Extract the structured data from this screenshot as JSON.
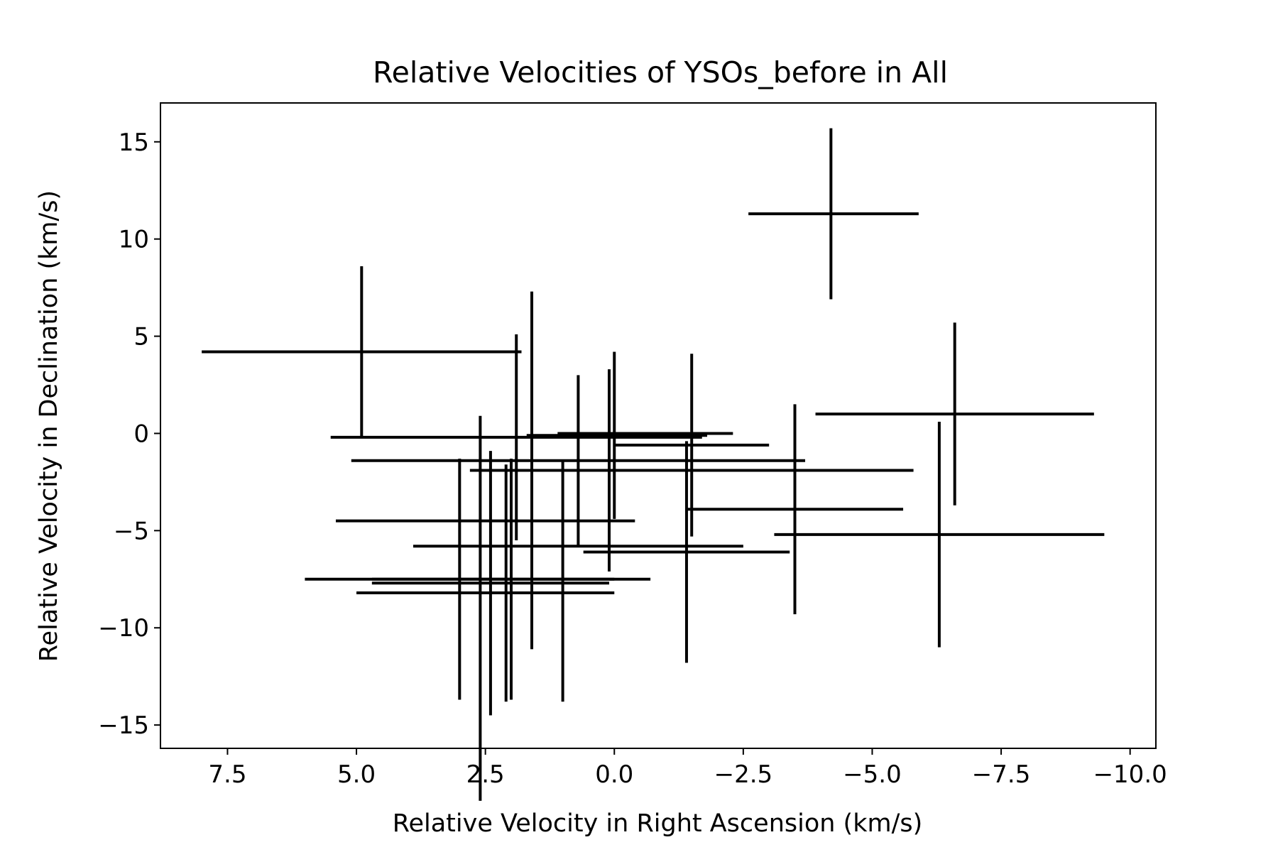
{
  "chart_data": {
    "type": "scatter",
    "title": "Relative Velocities of YSOs_before in All",
    "xlabel": "Relative Velocity in Right Ascension (km/s)",
    "ylabel": "Relative Velocity in Declination (km/s)",
    "xlim": [
      8.8,
      -10.5
    ],
    "ylim": [
      -16.2,
      17.0
    ],
    "x_inverted": true,
    "grid": false,
    "legend": "none",
    "xticks": [
      "7.5",
      "5.0",
      "2.5",
      "0.0",
      "−2.5",
      "−5.0",
      "−7.5",
      "−10.0"
    ],
    "yticks": [
      "15",
      "10",
      "5",
      "0",
      "−5",
      "−10",
      "−15"
    ],
    "color": "#000000",
    "points": [
      {
        "x": -4.2,
        "y": 11.3,
        "xerr": [
          1.6,
          1.7
        ],
        "yerr": [
          4.4,
          4.4
        ]
      },
      {
        "x": 4.9,
        "y": 4.2,
        "xerr": [
          3.1,
          3.1
        ],
        "yerr": [
          4.4,
          4.4
        ]
      },
      {
        "x": -6.6,
        "y": 1.0,
        "xerr": [
          2.7,
          2.7
        ],
        "yerr": [
          4.7,
          4.7
        ]
      },
      {
        "x": 1.9,
        "y": -0.2,
        "xerr": [
          3.6,
          3.6
        ],
        "yerr": [
          5.3,
          5.3
        ]
      },
      {
        "x": 0.0,
        "y": -0.1,
        "xerr": [
          1.7,
          1.8
        ],
        "yerr": [
          4.3,
          4.3
        ]
      },
      {
        "x": -0.6,
        "y": 0.0,
        "xerr": [
          1.7,
          1.7
        ],
        "yerr": [
          0.0,
          0.0
        ]
      },
      {
        "x": 2.6,
        "y": -9.0,
        "xerr": [
          0.0,
          0.0
        ],
        "yerr": [
          9.9,
          9.9
        ]
      },
      {
        "x": 0.7,
        "y": -1.4,
        "xerr": [
          4.4,
          4.4
        ],
        "yerr": [
          4.4,
          4.4
        ]
      },
      {
        "x": -1.5,
        "y": -0.6,
        "xerr": [
          1.5,
          1.5
        ],
        "yerr": [
          4.7,
          4.7
        ]
      },
      {
        "x": -1.5,
        "y": -1.9,
        "xerr": [
          4.3,
          4.3
        ],
        "yerr": [
          0.0,
          0.0
        ]
      },
      {
        "x": 1.6,
        "y": -1.9,
        "xerr": [
          0.0,
          0.0
        ],
        "yerr": [
          9.2,
          9.2
        ]
      },
      {
        "x": 0.1,
        "y": -1.9,
        "xerr": [
          0.0,
          0.0
        ],
        "yerr": [
          5.2,
          5.2
        ]
      },
      {
        "x": -3.5,
        "y": -3.9,
        "xerr": [
          2.1,
          2.1
        ],
        "yerr": [
          5.4,
          5.4
        ]
      },
      {
        "x": 2.5,
        "y": -4.5,
        "xerr": [
          2.9,
          2.9
        ],
        "yerr": [
          0.0,
          0.0
        ]
      },
      {
        "x": 0.7,
        "y": -5.8,
        "xerr": [
          3.2,
          3.2
        ],
        "yerr": [
          0.0,
          0.0
        ]
      },
      {
        "x": -6.3,
        "y": -5.2,
        "xerr": [
          3.2,
          3.2
        ],
        "yerr": [
          5.8,
          5.8
        ]
      },
      {
        "x": -1.4,
        "y": -6.1,
        "xerr": [
          2.0,
          2.0
        ],
        "yerr": [
          5.7,
          5.7
        ]
      },
      {
        "x": 3.0,
        "y": -7.5,
        "xerr": [
          3.0,
          3.0
        ],
        "yerr": [
          6.2,
          6.2
        ]
      },
      {
        "x": 2.0,
        "y": -7.5,
        "xerr": [
          2.7,
          2.7
        ],
        "yerr": [
          6.2,
          6.2
        ]
      },
      {
        "x": 2.4,
        "y": -7.7,
        "xerr": [
          2.3,
          2.3
        ],
        "yerr": [
          6.8,
          6.8
        ]
      },
      {
        "x": 2.1,
        "y": -7.7,
        "xerr": [
          0.0,
          0.0
        ],
        "yerr": [
          6.1,
          6.1
        ]
      },
      {
        "x": 1.0,
        "y": -7.6,
        "xerr": [
          0.0,
          0.0
        ],
        "yerr": [
          6.2,
          6.2
        ]
      },
      {
        "x": 2.5,
        "y": -8.2,
        "xerr": [
          2.5,
          2.5
        ],
        "yerr": [
          0.0,
          0.0
        ]
      }
    ]
  }
}
